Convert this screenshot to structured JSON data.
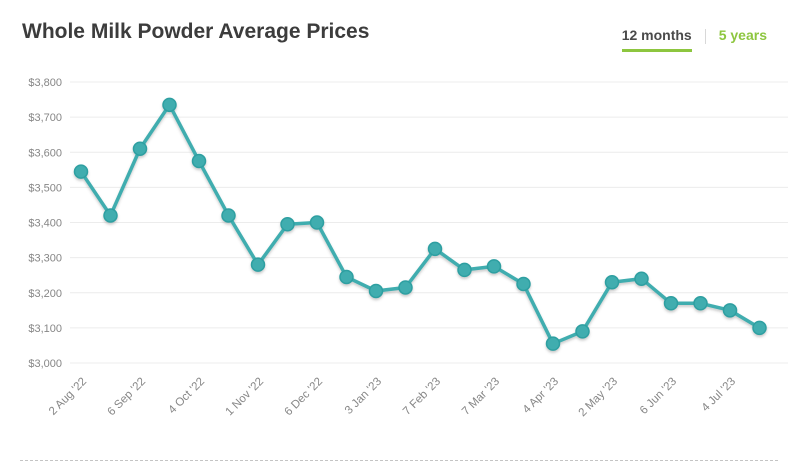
{
  "header": {
    "title": "Whole Milk Powder Average Prices",
    "tabs": [
      {
        "label": "12 months",
        "active": true
      },
      {
        "label": "5 years",
        "active": false
      }
    ]
  },
  "colors": {
    "line": "#3fadaf",
    "marker_fill": "#3fadaf",
    "marker_stroke": "#2d9fa1",
    "grid": "#ececec",
    "axis_text": "#868686",
    "title_text": "#3c3c3c",
    "tab_active_text": "#4a4a4a",
    "tab_accent_green": "#8dc63f",
    "divider": "#c4c4c4"
  },
  "chart_data": {
    "type": "line",
    "title": "Whole Milk Powder Average Prices",
    "x_tick_labels": [
      "2 Aug '22",
      "6 Sep '22",
      "4 Oct '22",
      "1 Nov '22",
      "6 Dec '22",
      "3 Jan '23",
      "7 Feb '23",
      "7 Mar '23",
      "4 Apr '23",
      "2 May '23",
      "6 Jun '23",
      "4 Jul '23"
    ],
    "x_tick_every": 2,
    "values": [
      3545,
      3420,
      3610,
      3735,
      3575,
      3420,
      3280,
      3395,
      3400,
      3245,
      3205,
      3215,
      3325,
      3265,
      3275,
      3225,
      3055,
      3090,
      3230,
      3240,
      3170,
      3170,
      3150,
      3100
    ],
    "ylim": [
      3000,
      3800
    ],
    "y_ticks": [
      {
        "value": 3800,
        "label": "$3,800"
      },
      {
        "value": 3700,
        "label": "$3,700"
      },
      {
        "value": 3600,
        "label": "$3,600"
      },
      {
        "value": 3500,
        "label": "$3,500"
      },
      {
        "value": 3400,
        "label": "$3,400"
      },
      {
        "value": 3300,
        "label": "$3,300"
      },
      {
        "value": 3200,
        "label": "$3,200"
      },
      {
        "value": 3100,
        "label": "$3,100"
      },
      {
        "value": 3000,
        "label": "$3,000"
      }
    ],
    "grid": "horizontal",
    "legend": "none",
    "marker": "circle"
  }
}
